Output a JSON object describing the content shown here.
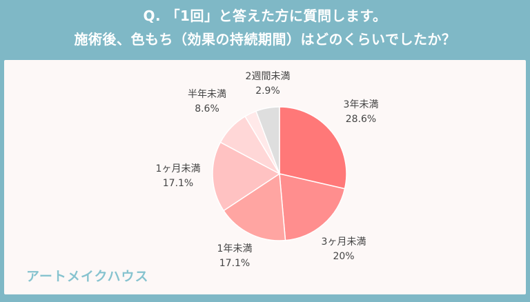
{
  "header": {
    "line1": "Q. 「1回」と答えた方に質問します。",
    "line2": "施術後、色もち（効果の持続期間）はどのくらいでしたか？"
  },
  "brand": "アートメイクハウス",
  "colors": {
    "background": "#7fb8c6",
    "card": "#fdf8f7",
    "header_text": "#ffffff",
    "brand_text": "#86c3cf"
  },
  "chart_data": {
    "type": "pie",
    "start": "12 o'clock",
    "direction": "clockwise",
    "unit": "%",
    "slices": [
      {
        "label": "3年未満",
        "value": 28.6,
        "display": "28.6%",
        "color": "#ff7878"
      },
      {
        "label": "3ヶ月未満",
        "value": 20,
        "display": "20%",
        "color": "#ff8e8e"
      },
      {
        "label": "1年未満",
        "value": 17.1,
        "display": "17.1%",
        "color": "#ffa5a2"
      },
      {
        "label": "1ヶ月未満",
        "value": 17.1,
        "display": "17.1%",
        "color": "#ffc2c2"
      },
      {
        "label": "半年未満",
        "value": 8.6,
        "display": "8.6%",
        "color": "#ffd7d7"
      },
      {
        "label": "2週間未満",
        "value": 2.9,
        "display": "2.9%",
        "color": "#ffe9e9"
      },
      {
        "label": "",
        "value": 5.7,
        "display": "",
        "color": "#dedede"
      }
    ]
  }
}
